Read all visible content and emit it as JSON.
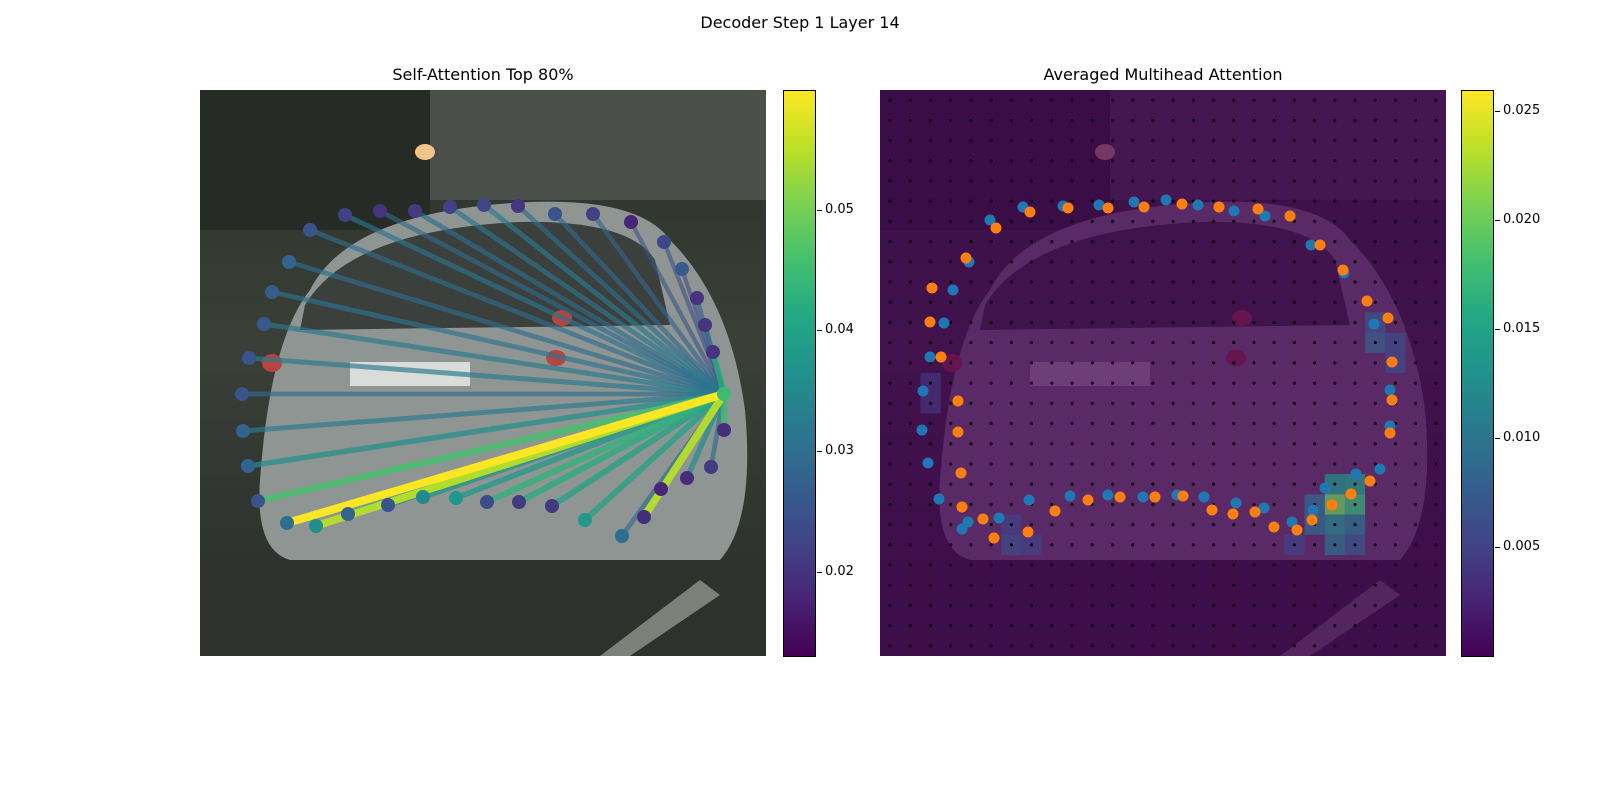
{
  "figure": {
    "suptitle": "Decoder Step 1 Layer 14"
  },
  "colors": {
    "viridis": [
      "#440154",
      "#482475",
      "#414487",
      "#355f8d",
      "#2a788e",
      "#21918c",
      "#22a884",
      "#44bf70",
      "#7ad151",
      "#bddf26",
      "#fde725"
    ],
    "series_blue": "#1f77b4",
    "series_orange": "#ff7f0e",
    "grid_dot": "#000000"
  },
  "chart_data": [
    {
      "type": "scatter",
      "title": "Self-Attention Top 80%",
      "background": "street scene photo of rear of a silver car",
      "colorbar": {
        "range": [
          0.013,
          0.06
        ],
        "ticks": [
          "0.02",
          "0.03",
          "0.04",
          "0.05"
        ],
        "tick_values": [
          0.02,
          0.03,
          0.04,
          0.05
        ]
      },
      "query_point": {
        "x": 524,
        "y": 304,
        "value": 0.045
      },
      "points": [
        {
          "x": 110,
          "y": 140,
          "v": 0.025
        },
        {
          "x": 145,
          "y": 125,
          "v": 0.022
        },
        {
          "x": 180,
          "y": 121,
          "v": 0.02
        },
        {
          "x": 215,
          "y": 121,
          "v": 0.021
        },
        {
          "x": 250,
          "y": 117,
          "v": 0.022
        },
        {
          "x": 284,
          "y": 115,
          "v": 0.023
        },
        {
          "x": 318,
          "y": 116,
          "v": 0.02
        },
        {
          "x": 355,
          "y": 124,
          "v": 0.025
        },
        {
          "x": 393,
          "y": 124,
          "v": 0.022
        },
        {
          "x": 431,
          "y": 132,
          "v": 0.018
        },
        {
          "x": 464,
          "y": 152,
          "v": 0.023
        },
        {
          "x": 482,
          "y": 179,
          "v": 0.026
        },
        {
          "x": 497,
          "y": 208,
          "v": 0.02
        },
        {
          "x": 505,
          "y": 235,
          "v": 0.02
        },
        {
          "x": 513,
          "y": 262,
          "v": 0.02
        },
        {
          "x": 524,
          "y": 340,
          "v": 0.019
        },
        {
          "x": 511,
          "y": 377,
          "v": 0.021
        },
        {
          "x": 487,
          "y": 388,
          "v": 0.019
        },
        {
          "x": 461,
          "y": 399,
          "v": 0.018
        },
        {
          "x": 444,
          "y": 427,
          "v": 0.019
        },
        {
          "x": 422,
          "y": 446,
          "v": 0.03
        },
        {
          "x": 385,
          "y": 430,
          "v": 0.038
        },
        {
          "x": 352,
          "y": 416,
          "v": 0.021
        },
        {
          "x": 319,
          "y": 412,
          "v": 0.021
        },
        {
          "x": 287,
          "y": 412,
          "v": 0.024
        },
        {
          "x": 256,
          "y": 408,
          "v": 0.038
        },
        {
          "x": 223,
          "y": 407,
          "v": 0.035
        },
        {
          "x": 188,
          "y": 415,
          "v": 0.025
        },
        {
          "x": 148,
          "y": 424,
          "v": 0.028
        },
        {
          "x": 116,
          "y": 436,
          "v": 0.036
        },
        {
          "x": 87,
          "y": 433,
          "v": 0.03
        },
        {
          "x": 58,
          "y": 411,
          "v": 0.025
        },
        {
          "x": 48,
          "y": 376,
          "v": 0.028
        },
        {
          "x": 43,
          "y": 341,
          "v": 0.028
        },
        {
          "x": 42,
          "y": 304,
          "v": 0.025
        },
        {
          "x": 49,
          "y": 268,
          "v": 0.025
        },
        {
          "x": 64,
          "y": 234,
          "v": 0.026
        },
        {
          "x": 72,
          "y": 202,
          "v": 0.027
        },
        {
          "x": 89,
          "y": 172,
          "v": 0.028
        }
      ],
      "edges": [
        {
          "to": 0,
          "w": 0.03
        },
        {
          "to": 1,
          "w": 0.031
        },
        {
          "to": 2,
          "w": 0.029
        },
        {
          "to": 3,
          "w": 0.03
        },
        {
          "to": 4,
          "w": 0.031
        },
        {
          "to": 5,
          "w": 0.032
        },
        {
          "to": 6,
          "w": 0.03
        },
        {
          "to": 7,
          "w": 0.029
        },
        {
          "to": 8,
          "w": 0.028
        },
        {
          "to": 9,
          "w": 0.025
        },
        {
          "to": 10,
          "w": 0.024
        },
        {
          "to": 11,
          "w": 0.023
        },
        {
          "to": 12,
          "w": 0.026
        },
        {
          "to": 13,
          "w": 0.03
        },
        {
          "to": 14,
          "w": 0.042
        },
        {
          "to": 15,
          "w": 0.045
        },
        {
          "to": 16,
          "w": 0.03
        },
        {
          "to": 17,
          "w": 0.036
        },
        {
          "to": 18,
          "w": 0.04
        },
        {
          "to": 19,
          "w": 0.055
        },
        {
          "to": 20,
          "w": 0.03
        },
        {
          "to": 21,
          "w": 0.04
        },
        {
          "to": 22,
          "w": 0.04
        },
        {
          "to": 23,
          "w": 0.042
        },
        {
          "to": 24,
          "w": 0.043
        },
        {
          "to": 25,
          "w": 0.038
        },
        {
          "to": 26,
          "w": 0.037
        },
        {
          "to": 27,
          "w": 0.037
        },
        {
          "to": 28,
          "w": 0.045
        },
        {
          "to": 29,
          "w": 0.055
        },
        {
          "to": 30,
          "w": 0.06
        },
        {
          "to": 31,
          "w": 0.046
        },
        {
          "to": 32,
          "w": 0.036
        },
        {
          "to": 33,
          "w": 0.032
        },
        {
          "to": 34,
          "w": 0.03
        },
        {
          "to": 35,
          "w": 0.032
        },
        {
          "to": 36,
          "w": 0.032
        },
        {
          "to": 37,
          "w": 0.031
        },
        {
          "to": 38,
          "w": 0.03
        }
      ]
    },
    {
      "type": "heatmap",
      "title": "Averaged Multihead Attention",
      "background": "street scene photo of rear of a silver car",
      "colorbar": {
        "range": [
          0.0,
          0.026
        ],
        "ticks": [
          "0.005",
          "0.010",
          "0.015",
          "0.020",
          "0.025"
        ],
        "tick_values": [
          0.005,
          0.01,
          0.015,
          0.02,
          0.025
        ]
      },
      "grid": {
        "rows": 28,
        "cols": 28,
        "base_value": 0.002
      },
      "hot_cells": [
        {
          "r": 19,
          "c": 22,
          "v": 0.013
        },
        {
          "r": 19,
          "c": 23,
          "v": 0.014
        },
        {
          "r": 20,
          "c": 22,
          "v": 0.02
        },
        {
          "r": 20,
          "c": 23,
          "v": 0.017
        },
        {
          "r": 21,
          "c": 21,
          "v": 0.009
        },
        {
          "r": 21,
          "c": 22,
          "v": 0.012
        },
        {
          "r": 21,
          "c": 23,
          "v": 0.01
        },
        {
          "r": 20,
          "c": 21,
          "v": 0.009
        },
        {
          "r": 22,
          "c": 22,
          "v": 0.01
        },
        {
          "r": 22,
          "c": 23,
          "v": 0.007
        },
        {
          "r": 12,
          "c": 24,
          "v": 0.008
        },
        {
          "r": 11,
          "c": 24,
          "v": 0.007
        },
        {
          "r": 12,
          "c": 25,
          "v": 0.006
        },
        {
          "r": 13,
          "c": 25,
          "v": 0.006
        },
        {
          "r": 22,
          "c": 6,
          "v": 0.006
        },
        {
          "r": 22,
          "c": 7,
          "v": 0.005
        },
        {
          "r": 21,
          "c": 6,
          "v": 0.005
        },
        {
          "r": 15,
          "c": 2,
          "v": 0.004
        },
        {
          "r": 14,
          "c": 2,
          "v": 0.004
        },
        {
          "r": 22,
          "c": 20,
          "v": 0.005
        }
      ],
      "series": [
        {
          "name": "blue",
          "points": [
            [
              110,
              130
            ],
            [
              143,
              117
            ],
            [
              183,
              116
            ],
            [
              219,
              115
            ],
            [
              254,
              112
            ],
            [
              286,
              110
            ],
            [
              318,
              115
            ],
            [
              354,
              121
            ],
            [
              385,
              126
            ],
            [
              431,
              155
            ],
            [
              464,
              183
            ],
            [
              494,
              234
            ],
            [
              510,
              300
            ],
            [
              510,
              336
            ],
            [
              500,
              379
            ],
            [
              476,
              384
            ],
            [
              445,
              398
            ],
            [
              433,
              420
            ],
            [
              412,
              432
            ],
            [
              384,
              418
            ],
            [
              356,
              413
            ],
            [
              324,
              407
            ],
            [
              297,
              405
            ],
            [
              263,
              407
            ],
            [
              228,
              405
            ],
            [
              190,
              406
            ],
            [
              149,
              410
            ],
            [
              119,
              428
            ],
            [
              88,
              432
            ],
            [
              82,
              439
            ],
            [
              59,
              409
            ],
            [
              48,
              373
            ],
            [
              42,
              340
            ],
            [
              43,
              301
            ],
            [
              50,
              267
            ],
            [
              64,
              233
            ],
            [
              73,
              200
            ],
            [
              89,
              172
            ]
          ]
        },
        {
          "name": "orange",
          "points": [
            [
              116,
              138
            ],
            [
              150,
              122
            ],
            [
              188,
              118
            ],
            [
              228,
              118
            ],
            [
              264,
              117
            ],
            [
              302,
              114
            ],
            [
              339,
              117
            ],
            [
              378,
              119
            ],
            [
              410,
              126
            ],
            [
              440,
              155
            ],
            [
              463,
              180
            ],
            [
              487,
              211
            ],
            [
              508,
              228
            ],
            [
              512,
              272
            ],
            [
              512,
              310
            ],
            [
              510,
              343
            ],
            [
              490,
              391
            ],
            [
              471,
              404
            ],
            [
              452,
              415
            ],
            [
              432,
              430
            ],
            [
              417,
              440
            ],
            [
              394,
              437
            ],
            [
              375,
              422
            ],
            [
              353,
              424
            ],
            [
              332,
              420
            ],
            [
              303,
              406
            ],
            [
              275,
              407
            ],
            [
              240,
              407
            ],
            [
              208,
              410
            ],
            [
              175,
              421
            ],
            [
              148,
              442
            ],
            [
              114,
              448
            ],
            [
              103,
              429
            ],
            [
              82,
              417
            ],
            [
              81,
              383
            ],
            [
              78,
              342
            ],
            [
              78,
              311
            ],
            [
              61,
              267
            ],
            [
              50,
              232
            ],
            [
              52,
              198
            ],
            [
              86,
              168
            ]
          ]
        }
      ]
    }
  ]
}
